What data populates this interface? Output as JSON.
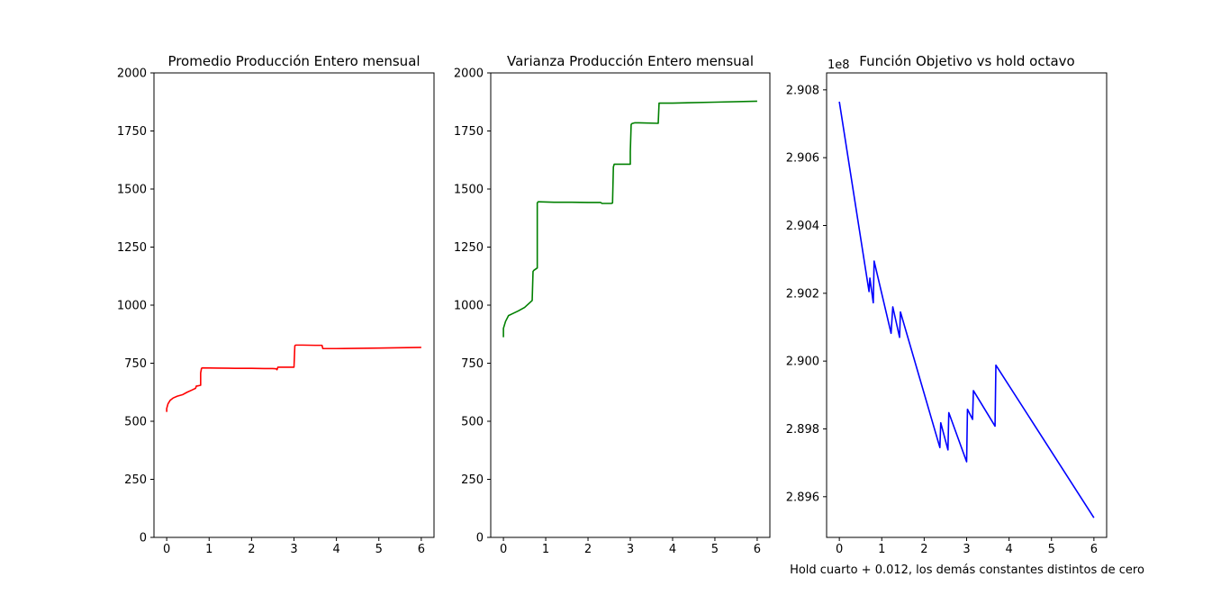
{
  "chart_data": [
    {
      "type": "line",
      "title": "Promedio Producción Entero mensual",
      "xlabel": "",
      "ylabel": "",
      "xlim": [
        -0.3,
        6.3
      ],
      "ylim": [
        0,
        2000
      ],
      "xticks": [
        0,
        1,
        2,
        3,
        4,
        5,
        6
      ],
      "yticks": [
        0,
        250,
        500,
        750,
        1000,
        1250,
        1500,
        1750,
        2000
      ],
      "tick_labels_x": [
        "0",
        "1",
        "2",
        "3",
        "4",
        "5",
        "6"
      ],
      "tick_labels_y": [
        "0",
        "250",
        "500",
        "750",
        "1000",
        "1250",
        "1500",
        "1750",
        "2000"
      ],
      "offset_label": "",
      "color": "#ff0000",
      "grid": false,
      "series": [
        {
          "x": [
            0.0,
            0.0,
            0.03,
            0.08,
            0.15,
            0.25,
            0.38,
            0.48,
            0.6,
            0.68,
            0.7,
            0.72,
            0.8,
            0.8,
            0.82,
            0.84,
            1.2,
            1.6,
            2.0,
            2.3,
            2.5,
            2.58,
            2.6,
            2.62,
            2.65,
            2.8,
            3.0,
            3.02,
            3.04,
            3.2,
            3.5,
            3.66,
            3.68,
            4.0,
            5.0,
            6.0
          ],
          "y": [
            540,
            555,
            575,
            590,
            600,
            608,
            615,
            625,
            635,
            642,
            652,
            652,
            655,
            708,
            728,
            730,
            729,
            728,
            728,
            727,
            727,
            726,
            722,
            733,
            733,
            733,
            733,
            825,
            828,
            828,
            827,
            827,
            813,
            813,
            815,
            818
          ]
        }
      ]
    },
    {
      "type": "line",
      "title": "Varianza Producción Entero mensual",
      "xlabel": "",
      "ylabel": "",
      "xlim": [
        -0.3,
        6.3
      ],
      "ylim": [
        0,
        2000
      ],
      "xticks": [
        0,
        1,
        2,
        3,
        4,
        5,
        6
      ],
      "yticks": [
        0,
        250,
        500,
        750,
        1000,
        1250,
        1500,
        1750,
        2000
      ],
      "tick_labels_x": [
        "0",
        "1",
        "2",
        "3",
        "4",
        "5",
        "6"
      ],
      "tick_labels_y": [
        "0",
        "250",
        "500",
        "750",
        "1000",
        "1250",
        "1500",
        "1750",
        "2000"
      ],
      "offset_label": "",
      "color": "#008000",
      "grid": false,
      "series": [
        {
          "x": [
            0.0,
            0.0,
            0.05,
            0.12,
            0.2,
            0.35,
            0.5,
            0.68,
            0.7,
            0.72,
            0.8,
            0.8,
            0.82,
            0.85,
            1.2,
            1.6,
            2.0,
            2.3,
            2.33,
            2.55,
            2.58,
            2.6,
            2.62,
            2.65,
            3.0,
            3.0,
            3.02,
            3.04,
            3.1,
            3.2,
            3.66,
            3.68,
            4.0,
            5.0,
            6.0
          ],
          "y": [
            862,
            900,
            930,
            955,
            962,
            975,
            990,
            1020,
            1145,
            1150,
            1160,
            1440,
            1445,
            1445,
            1443,
            1443,
            1442,
            1442,
            1438,
            1438,
            1440,
            1595,
            1607,
            1607,
            1607,
            1660,
            1778,
            1782,
            1785,
            1785,
            1783,
            1870,
            1870,
            1874,
            1878
          ]
        }
      ]
    },
    {
      "type": "line",
      "title": "Función Objetivo vs hold octavo",
      "xlabel": "Hold cuarto + 0.012, los demás constantes distintos de cero",
      "ylabel": "",
      "xlim": [
        -0.3,
        6.3
      ],
      "ylim": [
        289.48,
        290.85
      ],
      "xticks": [
        0,
        1,
        2,
        3,
        4,
        5,
        6
      ],
      "yticks": [
        289.6,
        289.8,
        290.0,
        290.2,
        290.4,
        290.6,
        290.8
      ],
      "tick_labels_x": [
        "0",
        "1",
        "2",
        "3",
        "4",
        "5",
        "6"
      ],
      "tick_labels_y": [
        "2.896",
        "2.898",
        "2.900",
        "2.902",
        "2.904",
        "2.906",
        "2.908"
      ],
      "offset_label": "1e8",
      "y_scale_note": "values in units of 1e6",
      "color": "#0000ff",
      "grid": false,
      "series": [
        {
          "x": [
            0.0,
            0.7,
            0.72,
            0.8,
            0.82,
            1.22,
            1.26,
            1.42,
            1.44,
            2.37,
            2.39,
            2.56,
            2.58,
            3.0,
            3.02,
            3.14,
            3.16,
            3.67,
            3.69,
            6.0
          ],
          "y": [
            290.765,
            290.205,
            290.245,
            290.172,
            290.295,
            290.082,
            290.16,
            290.07,
            290.145,
            289.745,
            289.818,
            289.738,
            289.848,
            289.703,
            289.858,
            289.828,
            289.913,
            289.808,
            289.988,
            289.538
          ]
        }
      ]
    }
  ]
}
